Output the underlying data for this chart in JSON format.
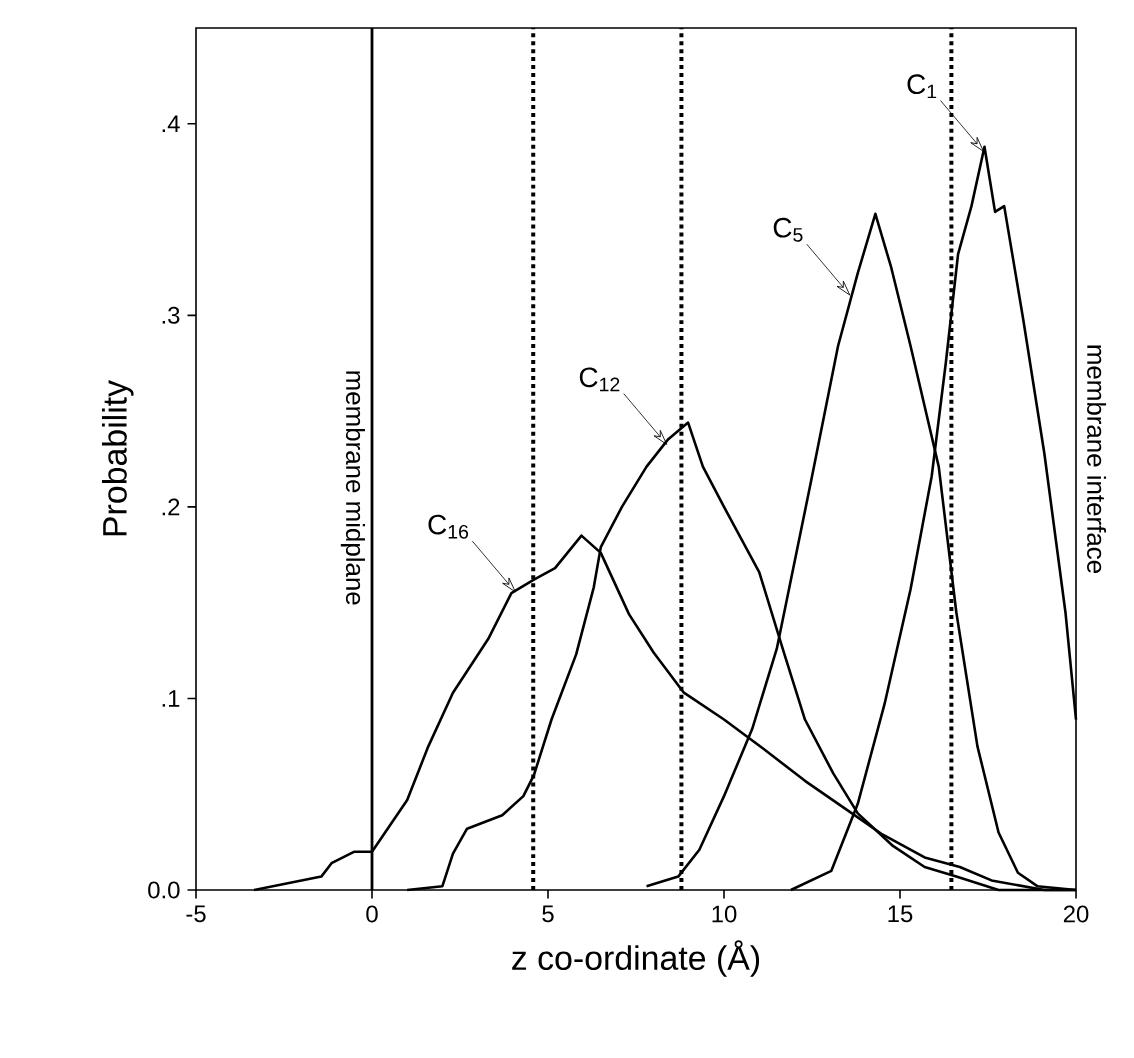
{
  "chart_data": {
    "type": "line",
    "xlabel": "z co-ordinate (Å)",
    "ylabel": "Probability",
    "xlim": [
      -5,
      20
    ],
    "xticks": [
      -5,
      0,
      5,
      10,
      15,
      20
    ],
    "ylim": [
      0,
      0.45
    ],
    "yticks": [
      {
        "value": 0,
        "label": "0.0"
      },
      {
        "value": 0.1,
        "label": ".1"
      },
      {
        "value": 0.2,
        "label": ".2"
      },
      {
        "value": 0.3,
        "label": ".3"
      },
      {
        "value": 0.4,
        "label": ".4"
      }
    ],
    "grid": false,
    "line_style": "solid",
    "marker": "none",
    "series": [
      {
        "color": "#000000",
        "x": [
          11.9,
          13.05,
          13.8,
          14.56,
          15.3,
          15.9,
          16.3,
          16.65,
          17.03,
          17.4,
          17.7,
          17.96,
          18.5,
          19.1,
          19.7,
          20
        ],
        "values": [
          0.0,
          0.01,
          0.045,
          0.097,
          0.157,
          0.216,
          0.275,
          0.332,
          0.357,
          0.388,
          0.354,
          0.357,
          0.298,
          0.228,
          0.145,
          0.089
        ]
      },
      {
        "color": "#000000",
        "x": [
          7.8,
          8.7,
          9.3,
          10,
          10.8,
          11.5,
          12.48,
          13.24,
          13.8,
          14.3,
          14.75,
          15.3,
          16.1,
          16.6,
          17.2,
          17.8,
          18.35,
          18.9,
          20
        ],
        "values": [
          0.002,
          0.007,
          0.021,
          0.049,
          0.084,
          0.126,
          0.214,
          0.284,
          0.322,
          0.353,
          0.325,
          0.284,
          0.221,
          0.145,
          0.075,
          0.03,
          0.009,
          0.002,
          0.0
        ]
      },
      {
        "color": "#000000",
        "x": [
          1.0,
          2.0,
          2.3,
          2.7,
          3.7,
          4.3,
          4.6,
          5.1,
          5.8,
          6.3,
          6.5,
          7.1,
          7.8,
          8.4,
          8.98,
          9.4,
          10,
          11,
          11.7,
          12.3,
          13.1,
          13.8,
          14.8,
          15.7,
          16.6,
          17.8,
          20
        ],
        "values": [
          0.0,
          0.002,
          0.019,
          0.032,
          0.039,
          0.049,
          0.06,
          0.089,
          0.123,
          0.158,
          0.179,
          0.2,
          0.221,
          0.235,
          0.244,
          0.221,
          0.2,
          0.166,
          0.124,
          0.089,
          0.061,
          0.04,
          0.023,
          0.012,
          0.007,
          0.0,
          0.0
        ]
      },
      {
        "color": "#000000",
        "x": [
          -3.35,
          -1.44,
          -1.15,
          -0.5,
          0,
          1.0,
          1.6,
          2.3,
          3.3,
          3.96,
          4.6,
          5.2,
          5.95,
          6.5,
          7.3,
          8.0,
          8.86,
          10,
          11.1,
          12.3,
          13.4,
          14.5,
          15.7,
          16.7,
          17.6,
          19.1,
          20
        ],
        "values": [
          0.0,
          0.007,
          0.014,
          0.02,
          0.02,
          0.047,
          0.075,
          0.103,
          0.131,
          0.155,
          0.162,
          0.168,
          0.185,
          0.176,
          0.144,
          0.124,
          0.103,
          0.089,
          0.074,
          0.057,
          0.043,
          0.029,
          0.017,
          0.012,
          0.005,
          0.0,
          0.0
        ]
      }
    ],
    "ref_lines": [
      {
        "axis": "x",
        "value": 0,
        "label": "membrane midplane",
        "line_style": "solid"
      },
      {
        "axis": "x",
        "value": 4.58,
        "line_style": "dotted"
      },
      {
        "axis": "x",
        "value": 8.79,
        "line_style": "dotted"
      },
      {
        "axis": "x",
        "value": 16.46,
        "line_style": "dotted"
      }
    ],
    "annotations": [
      {
        "text": "C$_{1}$",
        "x": 17.4,
        "y": 0.385
      },
      {
        "text": "C$_{5}$",
        "x": 13.6,
        "y": 0.31
      },
      {
        "text": "C$_{12}$",
        "x": 8.4,
        "y": 0.232
      },
      {
        "text": "C$_{16}$",
        "x": 4.1,
        "y": 0.155
      },
      "membrane interface"
    ]
  }
}
